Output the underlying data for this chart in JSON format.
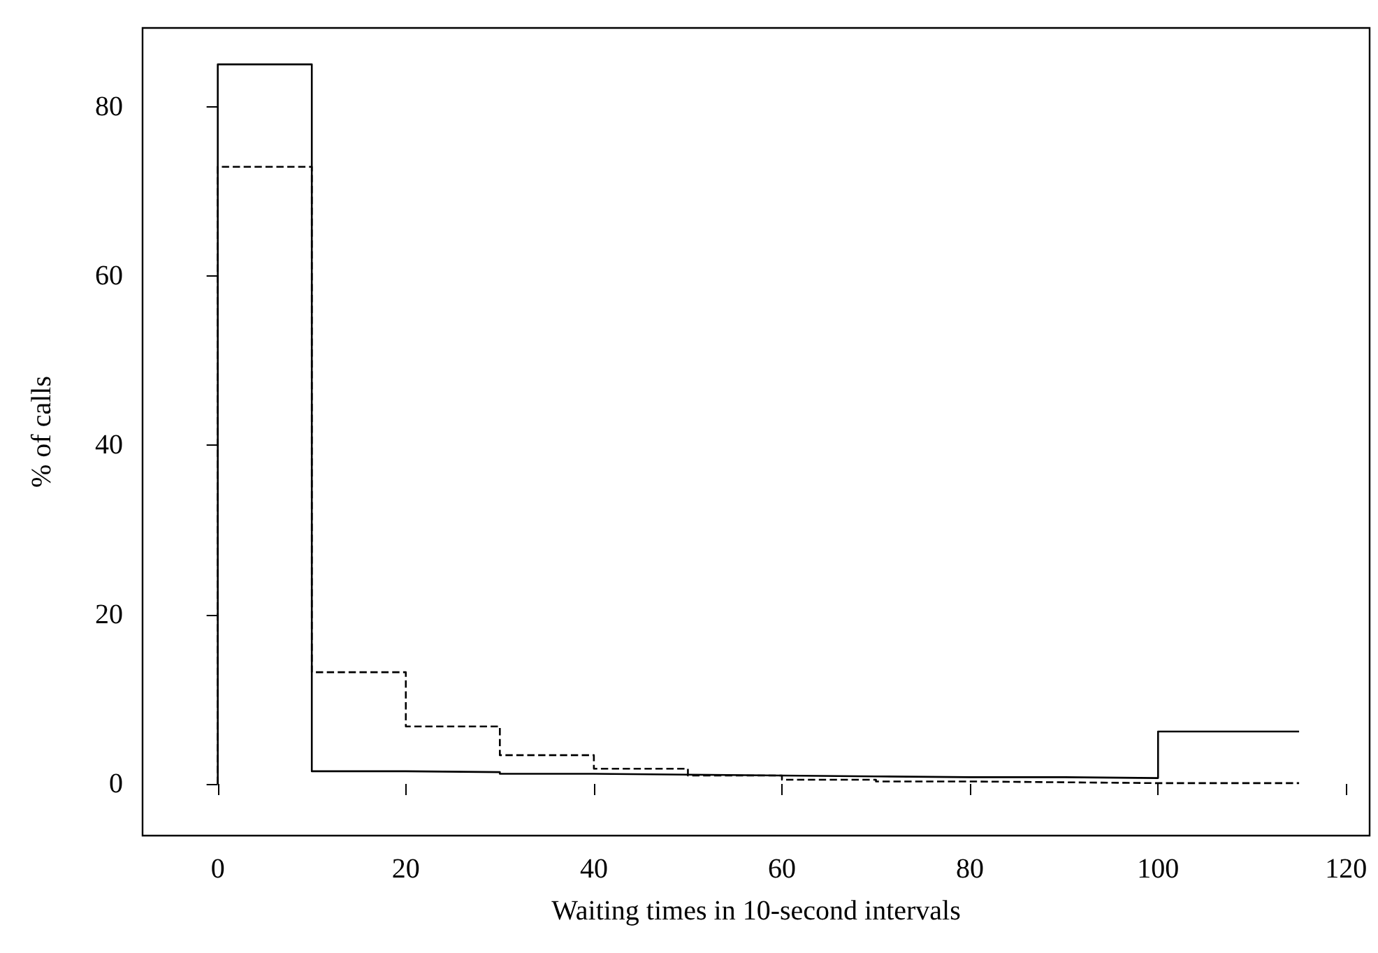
{
  "chart_data": {
    "type": "step",
    "xlabel": "Waiting times in 10-second intervals",
    "ylabel": "% of calls",
    "x": [
      0,
      10,
      20,
      30,
      40,
      50,
      60,
      70,
      80,
      90,
      100,
      115
    ],
    "series": [
      {
        "color": "#000000",
        "line_style": "solid",
        "values": [
          0,
          85,
          1.5,
          1.4,
          1.2,
          1.1,
          1.0,
          0.9,
          0.8,
          0.8,
          0.7,
          6.2
        ]
      },
      {
        "color": "#000000",
        "line_style": "dashed",
        "values": [
          0,
          72.9,
          13.2,
          6.8,
          3.4,
          1.8,
          1.0,
          0.5,
          0.3,
          0.2,
          0.1,
          0.1
        ]
      }
    ],
    "xlim": [
      -8,
      122.5
    ],
    "xticks": [
      0,
      20,
      40,
      60,
      80,
      100,
      120
    ],
    "ylim": [
      -6.1,
      89.3
    ],
    "yticks": [
      0,
      20,
      40,
      60,
      80
    ],
    "marker": "none"
  }
}
